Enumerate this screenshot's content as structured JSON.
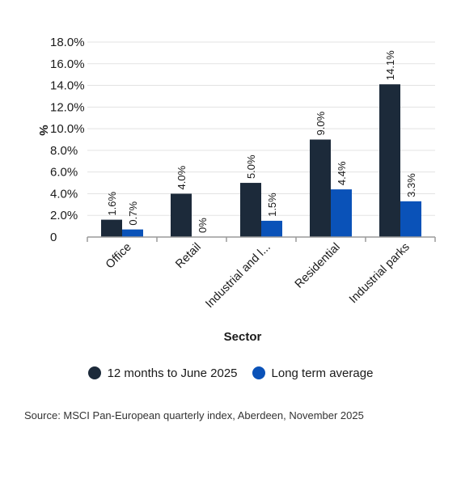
{
  "chart_data": {
    "type": "bar",
    "categories": [
      "Office",
      "Retail",
      "Industrial and l...",
      "Residential",
      "Industrial parks"
    ],
    "series": [
      {
        "name": "12 months to June 2025",
        "values": [
          1.6,
          4.0,
          5.0,
          9.0,
          14.1
        ],
        "labels": [
          "1.6%",
          "4.0%",
          "5.0%",
          "9.0%",
          "14.1%"
        ],
        "color": "#1c2a3a"
      },
      {
        "name": "Long term average",
        "values": [
          0.7,
          0,
          1.5,
          4.4,
          3.3
        ],
        "labels": [
          "0.7%",
          "0%",
          "1.5%",
          "4.4%",
          "3.3%"
        ],
        "color": "#0a52b8"
      }
    ],
    "ylim": [
      0,
      18
    ],
    "yticks": [
      0,
      2,
      4,
      6,
      8,
      10,
      12,
      14,
      16,
      18
    ],
    "ytick_labels": [
      "0",
      "2.0%",
      "4.0%",
      "6.0%",
      "8.0%",
      "10.0%",
      "12.0%",
      "14.0%",
      "16.0%",
      "18.0%"
    ],
    "xlabel": "Sector",
    "ylabel": "%",
    "grid": true,
    "legend_position": "bottom"
  },
  "legend": {
    "items": [
      {
        "label": "12 months to June 2025",
        "color": "#1c2a3a"
      },
      {
        "label": "Long term average",
        "color": "#0a52b8"
      }
    ]
  },
  "source": "Source: MSCI Pan-European quarterly index, Aberdeen, November 2025"
}
